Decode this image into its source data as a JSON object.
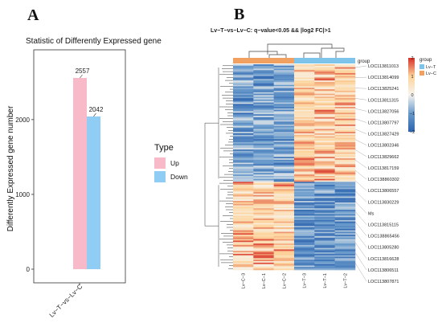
{
  "panel_a": {
    "letter": "A",
    "title": "Statistic of Differently Expressed gene",
    "ylabel": "Differently Expressed gene number",
    "yticks": [
      0,
      1000,
      2000
    ],
    "category": "Lv−T−vs−Lv−C",
    "legend_title": "Type",
    "legend": [
      {
        "label": "Up",
        "color": "#f8bac8"
      },
      {
        "label": "Down",
        "color": "#8fcdf5"
      }
    ]
  },
  "panel_b": {
    "letter": "B",
    "title": "Lv−T−vs−Lv−C: q−value<0.05 && |log2 FC|>1",
    "group_label": "group",
    "group_legend_title": "group",
    "group_legend": [
      {
        "label": "Lv−T",
        "color": "#7ec4ea"
      },
      {
        "label": "Lv−C",
        "color": "#f0a060"
      }
    ],
    "colorbar_ticks": [
      "2",
      "1",
      "0",
      "−1",
      "−2"
    ],
    "colorbar_colors": [
      "#d73027",
      "#fdd39a",
      "#f7f4ee",
      "#6a9bcc",
      "#2c62ad"
    ],
    "samples": [
      "Lv−C−3",
      "Lv−C−1",
      "Lv−C−2",
      "Lv−T−3",
      "Lv−T−1",
      "Lv−T−2"
    ],
    "genes": [
      "LOC113811013",
      "LOC113814099",
      "LOC113825241",
      "LOC113811315",
      "LOC113827056",
      "LOC113807797",
      "LOC113827429",
      "LOC113802346",
      "LOC113829662",
      "LOC113817159",
      "LOC138860302",
      "LOC113806557",
      "LOC113830229",
      "Ms",
      "LOC113815115",
      "LOC138865456",
      "LOC113805280",
      "LOC113816628",
      "LOC113806511",
      "LOC113807871"
    ]
  },
  "chart_data": [
    {
      "type": "bar",
      "title": "Statistic of Differently Expressed gene",
      "categories": [
        "Lv−T−vs−Lv−C"
      ],
      "series": [
        {
          "name": "Up",
          "values": [
            2557
          ]
        },
        {
          "name": "Down",
          "values": [
            2042
          ]
        }
      ],
      "ylabel": "Differently Expressed gene number",
      "ylim": [
        0,
        2800
      ],
      "legend_placement": "right"
    },
    {
      "type": "heatmap",
      "title": "Lv−T−vs−Lv−C: q−value<0.05 && |log2 FC|>1",
      "columns": [
        "Lv−C−3",
        "Lv−C−1",
        "Lv−C−2",
        "Lv−T−3",
        "Lv−T−1",
        "Lv−T−2"
      ],
      "color_range": [
        -2,
        2
      ]
    }
  ]
}
